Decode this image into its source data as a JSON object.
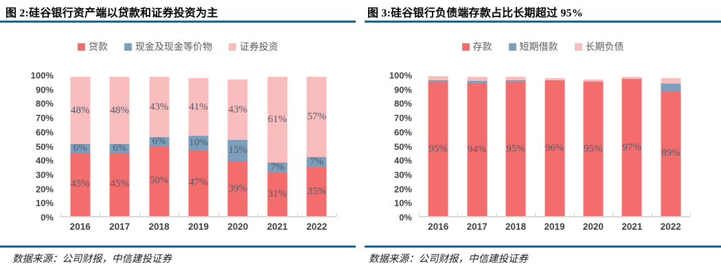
{
  "colors": {
    "accent_rule": "#1f5c85",
    "axis_line": "#d9d9d9",
    "tick_mark": "#c9c9c9",
    "data_label": "#4e5c6c",
    "legend_text": "#595959",
    "series_red": "#f46d6d",
    "series_blue": "#7e9fbb",
    "series_pink": "#f9bdbd"
  },
  "panels": [
    {
      "title": "图 2:硅谷银行资产端以贷款和证券投资为主",
      "source": "数据来源：公司财报，中信建投证券",
      "chart_data": {
        "type": "bar",
        "stacked": true,
        "grid": false,
        "legend_position": "top",
        "categories": [
          "2016",
          "2017",
          "2018",
          "2019",
          "2020",
          "2021",
          "2022"
        ],
        "series": [
          {
            "name": "贷款",
            "color": "#f46d6d",
            "show_labels": true,
            "values": [
              45,
              45,
              50,
              47,
              39,
              31,
              35
            ]
          },
          {
            "name": "现金及现金等价物",
            "color": "#7e9fbb",
            "show_labels": true,
            "values": [
              6,
              6,
              6,
              10,
              15,
              7,
              7
            ]
          },
          {
            "name": "证券投资",
            "color": "#f9bdbd",
            "show_labels": true,
            "values": [
              48,
              48,
              43,
              41,
              43,
              61,
              57
            ]
          }
        ],
        "xlabel": "",
        "ylabel": "",
        "ylim": [
          0,
          100
        ],
        "yticks": [
          "0%",
          "10%",
          "20%",
          "30%",
          "40%",
          "50%",
          "60%",
          "70%",
          "80%",
          "90%",
          "100%"
        ]
      }
    },
    {
      "title": "图 3:硅谷银行负债端存款占比长期超过 95%",
      "source": "数据来源：公司财报，中信建投证券",
      "chart_data": {
        "type": "bar",
        "stacked": true,
        "grid": false,
        "legend_position": "top",
        "categories": [
          "2016",
          "2017",
          "2018",
          "2019",
          "2020",
          "2021",
          "2022"
        ],
        "series": [
          {
            "name": "存款",
            "color": "#f46d6d",
            "show_labels": true,
            "values": [
              95,
              94,
              95,
              96,
              95,
              97,
              89
            ]
          },
          {
            "name": "短期借款",
            "color": "#7e9fbb",
            "show_labels": false,
            "values": [
              1.5,
              2,
              1.5,
              0.5,
              0.5,
              0.5,
              5.2
            ]
          },
          {
            "name": "长期负债",
            "color": "#f9bdbd",
            "show_labels": false,
            "values": [
              3,
              3,
              2.5,
              1.5,
              1.5,
              1.6,
              3.8
            ]
          }
        ],
        "xlabel": "",
        "ylabel": "",
        "ylim": [
          0,
          100
        ],
        "yticks": [
          "0%",
          "10%",
          "20%",
          "30%",
          "40%",
          "50%",
          "60%",
          "70%",
          "80%",
          "90%",
          "100%"
        ]
      }
    }
  ]
}
